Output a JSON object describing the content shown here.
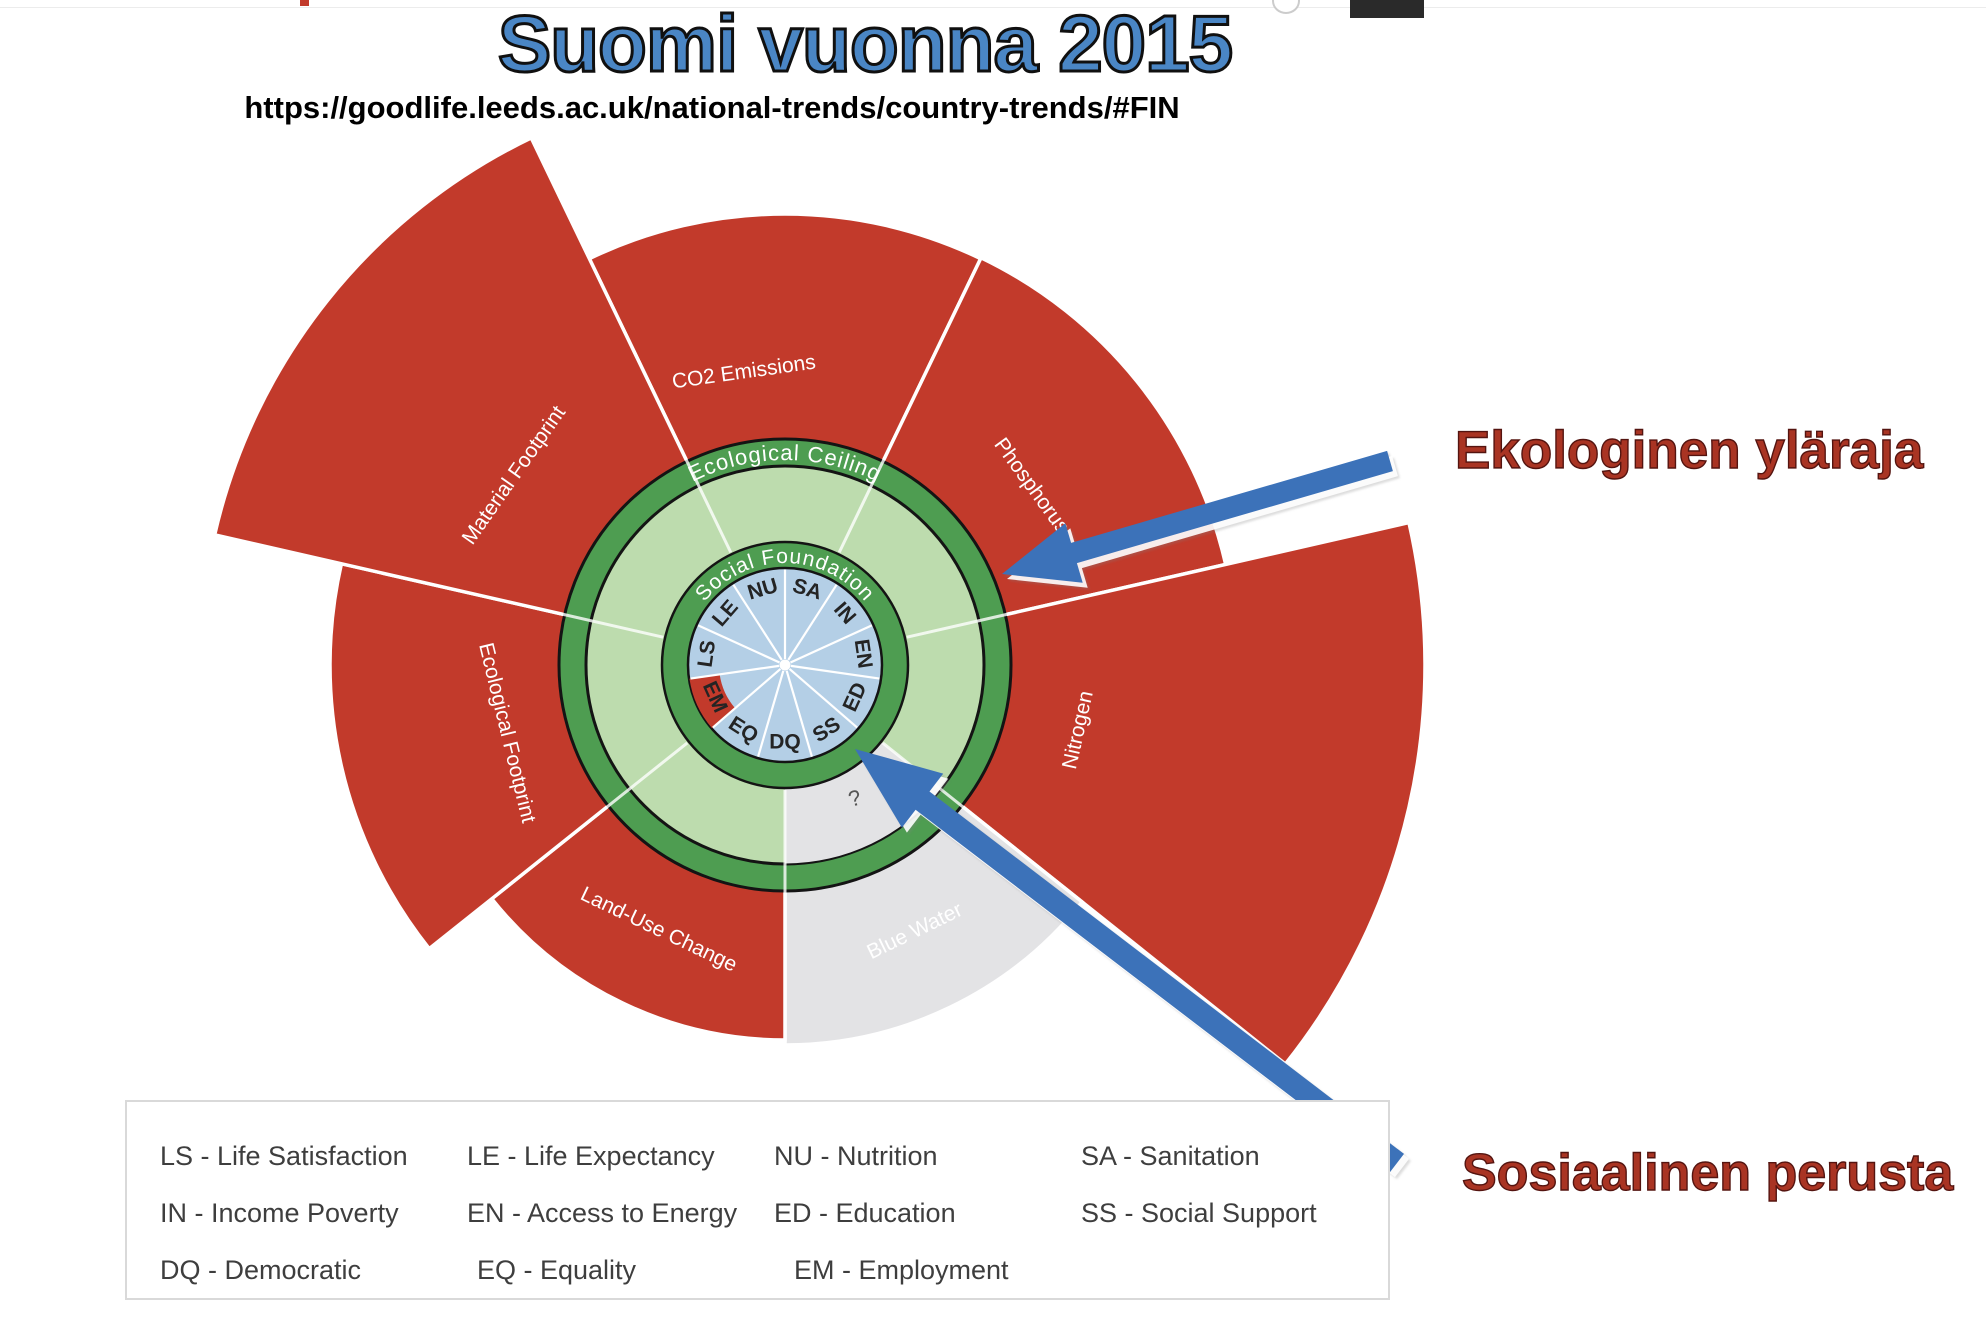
{
  "page": {
    "title": "Suomi vuonna 2015",
    "url": "https://goodlife.leeds.ac.uk/national-trends/country-trends/#FIN"
  },
  "annotations": {
    "ceiling_label": "Ekologinen yläraja",
    "foundation_label": "Sosiaalinen perusta",
    "arrows": [
      {
        "name": "ceiling-arrow",
        "tail": [
          1390,
          461
        ],
        "tip": [
          1002,
          574
        ],
        "body_w": 21,
        "head_l": 75,
        "head_w": 62
      },
      {
        "name": "foundation-arrow",
        "tail": [
          1397,
          1163
        ],
        "tip": [
          855,
          749
        ],
        "body_w": 23,
        "head_l": 85,
        "head_w": 68
      }
    ]
  },
  "legend": {
    "items": [
      "LS - Life Satisfaction",
      "LE - Life Expectancy",
      "NU - Nutrition",
      "SA - Sanitation",
      "IN - Income Poverty",
      "EN - Access to Energy",
      "ED - Education",
      "SS - Social Support",
      "DQ - Democratic",
      "EQ - Equality",
      "EM - Employment"
    ]
  },
  "chart_data": {
    "type": "doughnut_economics_radial",
    "ring_labels": {
      "ceiling": "Ecological Ceiling",
      "foundation": "Social Foundation"
    },
    "center": [
      785,
      665
    ],
    "radii": {
      "inner_circle": 97,
      "foundation_ring_outer": 123,
      "zone_outer": 199,
      "ceiling_ring_outer": 226,
      "sector_inner": 222,
      "indicator_label_r": 78,
      "ceiling_text_r": 205,
      "foundation_text_r": 102
    },
    "ecological_sectors": [
      {
        "name": "CO2 Emissions",
        "a0": -25.71,
        "a1": 25.71,
        "outer_r": 451,
        "status": "overshoot",
        "label_angle": -8,
        "label_r": 295
      },
      {
        "name": "Phosphorus",
        "a0": 25.71,
        "a1": 77.14,
        "outer_r": 452,
        "status": "overshoot",
        "label_angle": 54,
        "label_r": 304
      },
      {
        "name": "Nitrogen",
        "a0": 77.14,
        "a1": 128.57,
        "outer_r": 640,
        "status": "overshoot",
        "label_angle": 102.5,
        "label_r": 301
      },
      {
        "name": "Blue Water",
        "a0": 128.57,
        "a1": 180,
        "outer_r": 380,
        "status": "unknown",
        "label_angle": 154,
        "label_r": 297
      },
      {
        "name": "Land-Use Change",
        "a0": 180,
        "a1": 231.43,
        "outer_r": 375,
        "status": "overshoot",
        "label_angle": 205.5,
        "label_r": 294
      },
      {
        "name": "Ecological Footprint",
        "a0": 231.43,
        "a1": 282.86,
        "outer_r": 455,
        "status": "overshoot",
        "label_angle": 256.3,
        "label_r": 287
      },
      {
        "name": "Material Footprint",
        "a0": 282.86,
        "a1": 334.29,
        "outer_r": 585,
        "status": "overshoot",
        "label_angle": 305,
        "label_r": 330
      }
    ],
    "social_indicators": [
      {
        "code": "SA",
        "angle": 16.36,
        "status": "met"
      },
      {
        "code": "IN",
        "angle": 49.09,
        "status": "met"
      },
      {
        "code": "EN",
        "angle": 81.82,
        "status": "met"
      },
      {
        "code": "ED",
        "angle": 114.55,
        "status": "met"
      },
      {
        "code": "SS",
        "angle": 147.27,
        "status": "met"
      },
      {
        "code": "DQ",
        "angle": 180,
        "status": "met"
      },
      {
        "code": "EQ",
        "angle": 212.73,
        "status": "met"
      },
      {
        "code": "EM",
        "angle": 245.45,
        "status": "shortfall"
      },
      {
        "code": "LS",
        "angle": 278.18,
        "status": "met"
      },
      {
        "code": "LE",
        "angle": 310.91,
        "status": "met"
      },
      {
        "code": "NU",
        "angle": 343.64,
        "status": "met"
      }
    ],
    "shortfall_band": {
      "code": "EM",
      "r_inner": 66,
      "r_outer": 96.5,
      "a0": 229.09,
      "a1": 261.82
    },
    "unknown_marker": {
      "text": "?",
      "angle": 152.5,
      "r": 152,
      "rotation": -15
    },
    "colors": {
      "overshoot_red": "#c23a2b",
      "ring_green": "#4e9d51",
      "zone_green": "#bddcae",
      "inner_blue": "#b4cfe6",
      "unknown_gray": "#e3e3e5",
      "outline_black": "#141414",
      "divider_white": "#ffffff",
      "arrow_blue": "#3c72b9",
      "title_blue": "#4a86c5",
      "annotation_red": "#a93423"
    }
  }
}
